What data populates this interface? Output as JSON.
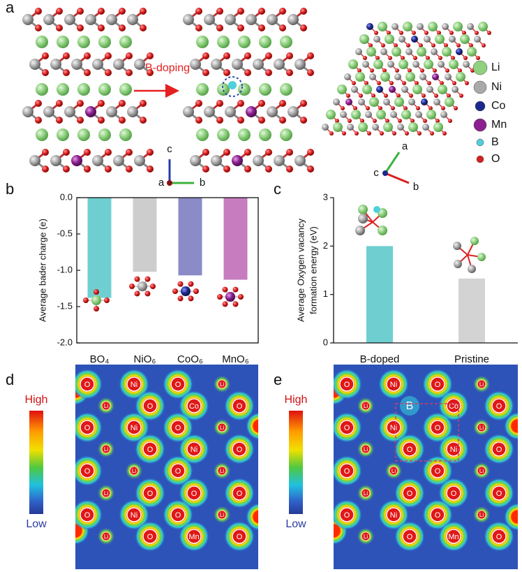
{
  "panel_labels": [
    "a",
    "b",
    "c",
    "d",
    "e"
  ],
  "structure": {
    "arrow_label": "B-doping",
    "axes_left": [
      "c",
      "a",
      "b"
    ],
    "axes_right": [
      "a",
      "c",
      "b"
    ],
    "legend": [
      {
        "label": "Li",
        "color": "#8fd17f"
      },
      {
        "label": "Ni",
        "color": "#a9a9a9"
      },
      {
        "label": "Co",
        "color": "#1d2a8c"
      },
      {
        "label": "Mn",
        "color": "#8b1f8f"
      },
      {
        "label": "B",
        "color": "#4fd0dc"
      },
      {
        "label": "O",
        "color": "#d81f1f"
      }
    ]
  },
  "chart_data": [
    {
      "type": "bar",
      "ylabel": "Average bader charge (e)",
      "categories": [
        "BO₄",
        "NiO₆",
        "CoO₆",
        "MnO₆"
      ],
      "values": [
        -1.38,
        -1.02,
        -1.07,
        -1.13
      ],
      "colors": [
        "#6fcfd0",
        "#cdcdcd",
        "#8b8bc8",
        "#c67cbf"
      ],
      "ylim": [
        -2,
        0
      ],
      "yticks": [
        {
          "value": -2,
          "label": "-2.0"
        },
        -1.5,
        {
          "value": -1,
          "label": "-1.0"
        },
        -0.5,
        {
          "value": 0,
          "label": "0.0"
        }
      ],
      "axes_box": true
    },
    {
      "type": "bar",
      "ylabel": [
        "Average Oxygen vacancy",
        "formation energy (eV)"
      ],
      "categories": [
        "B-doped",
        "Pristine"
      ],
      "values": [
        2.0,
        1.33
      ],
      "colors": [
        "#6fcfd0",
        "#d3d3d3"
      ],
      "ylim": [
        0,
        3
      ],
      "yticks": [
        0,
        1,
        2,
        3
      ],
      "axes_box": false
    }
  ],
  "maps": [
    {
      "high": "High",
      "low": "Low",
      "atoms": [
        "O",
        "Ni",
        "O",
        "Li",
        "Li",
        "O",
        "Co",
        "O",
        "O",
        "Ni",
        "O",
        "Li",
        "Li",
        "O",
        "Ni",
        "O",
        "O",
        "Li",
        "O",
        "Li",
        "Li",
        "O",
        "O",
        "O",
        "O",
        "Ni",
        "O",
        "Li",
        "Li",
        "O",
        "Mn",
        "O"
      ]
    },
    {
      "high": "High",
      "low": "Low",
      "atoms": [
        "O",
        "Ni",
        "O",
        "Li",
        "Li",
        "B",
        "Co",
        "O",
        "O",
        "Ni",
        "O",
        "Li",
        "Li",
        "O",
        "Ni",
        "O",
        "O",
        "Li",
        "O",
        "Li",
        "Li",
        "O",
        "O",
        "O",
        "O",
        "Ni",
        "O",
        "Li",
        "Li",
        "O",
        "Mn",
        "O"
      ]
    }
  ]
}
